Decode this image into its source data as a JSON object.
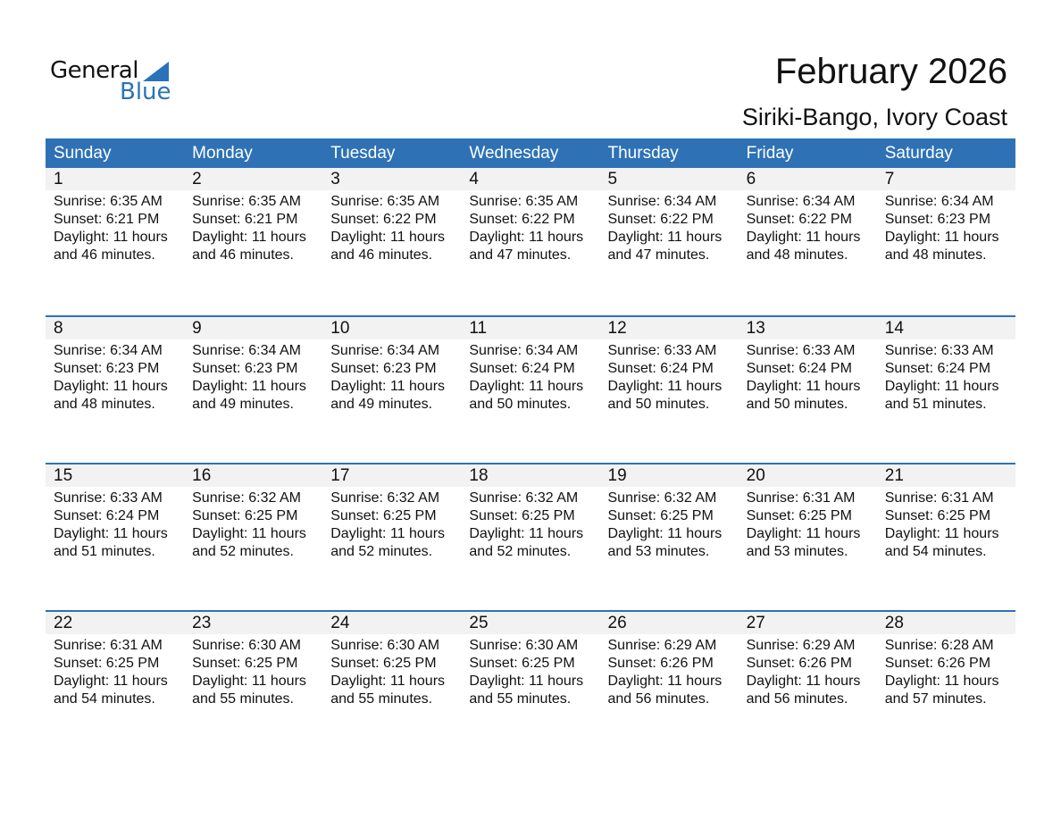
{
  "logo": {
    "text1": "General",
    "text2": "Blue"
  },
  "title": "February 2026",
  "location": "Siriki-Bango, Ivory Coast",
  "colors": {
    "header": "#2e72b5",
    "band": "#f2f2f2",
    "logo_blue": "#2a73b8"
  },
  "weekdays": [
    "Sunday",
    "Monday",
    "Tuesday",
    "Wednesday",
    "Thursday",
    "Friday",
    "Saturday"
  ],
  "weeks": [
    [
      {
        "day": "1",
        "sunrise": "Sunrise: 6:35 AM",
        "sunset": "Sunset: 6:21 PM",
        "daylight": "Daylight: 11 hours",
        "minutes": "and 46 minutes."
      },
      {
        "day": "2",
        "sunrise": "Sunrise: 6:35 AM",
        "sunset": "Sunset: 6:21 PM",
        "daylight": "Daylight: 11 hours",
        "minutes": "and 46 minutes."
      },
      {
        "day": "3",
        "sunrise": "Sunrise: 6:35 AM",
        "sunset": "Sunset: 6:22 PM",
        "daylight": "Daylight: 11 hours",
        "minutes": "and 46 minutes."
      },
      {
        "day": "4",
        "sunrise": "Sunrise: 6:35 AM",
        "sunset": "Sunset: 6:22 PM",
        "daylight": "Daylight: 11 hours",
        "minutes": "and 47 minutes."
      },
      {
        "day": "5",
        "sunrise": "Sunrise: 6:34 AM",
        "sunset": "Sunset: 6:22 PM",
        "daylight": "Daylight: 11 hours",
        "minutes": "and 47 minutes."
      },
      {
        "day": "6",
        "sunrise": "Sunrise: 6:34 AM",
        "sunset": "Sunset: 6:22 PM",
        "daylight": "Daylight: 11 hours",
        "minutes": "and 48 minutes."
      },
      {
        "day": "7",
        "sunrise": "Sunrise: 6:34 AM",
        "sunset": "Sunset: 6:23 PM",
        "daylight": "Daylight: 11 hours",
        "minutes": "and 48 minutes."
      }
    ],
    [
      {
        "day": "8",
        "sunrise": "Sunrise: 6:34 AM",
        "sunset": "Sunset: 6:23 PM",
        "daylight": "Daylight: 11 hours",
        "minutes": "and 48 minutes."
      },
      {
        "day": "9",
        "sunrise": "Sunrise: 6:34 AM",
        "sunset": "Sunset: 6:23 PM",
        "daylight": "Daylight: 11 hours",
        "minutes": "and 49 minutes."
      },
      {
        "day": "10",
        "sunrise": "Sunrise: 6:34 AM",
        "sunset": "Sunset: 6:23 PM",
        "daylight": "Daylight: 11 hours",
        "minutes": "and 49 minutes."
      },
      {
        "day": "11",
        "sunrise": "Sunrise: 6:34 AM",
        "sunset": "Sunset: 6:24 PM",
        "daylight": "Daylight: 11 hours",
        "minutes": "and 50 minutes."
      },
      {
        "day": "12",
        "sunrise": "Sunrise: 6:33 AM",
        "sunset": "Sunset: 6:24 PM",
        "daylight": "Daylight: 11 hours",
        "minutes": "and 50 minutes."
      },
      {
        "day": "13",
        "sunrise": "Sunrise: 6:33 AM",
        "sunset": "Sunset: 6:24 PM",
        "daylight": "Daylight: 11 hours",
        "minutes": "and 50 minutes."
      },
      {
        "day": "14",
        "sunrise": "Sunrise: 6:33 AM",
        "sunset": "Sunset: 6:24 PM",
        "daylight": "Daylight: 11 hours",
        "minutes": "and 51 minutes."
      }
    ],
    [
      {
        "day": "15",
        "sunrise": "Sunrise: 6:33 AM",
        "sunset": "Sunset: 6:24 PM",
        "daylight": "Daylight: 11 hours",
        "minutes": "and 51 minutes."
      },
      {
        "day": "16",
        "sunrise": "Sunrise: 6:32 AM",
        "sunset": "Sunset: 6:25 PM",
        "daylight": "Daylight: 11 hours",
        "minutes": "and 52 minutes."
      },
      {
        "day": "17",
        "sunrise": "Sunrise: 6:32 AM",
        "sunset": "Sunset: 6:25 PM",
        "daylight": "Daylight: 11 hours",
        "minutes": "and 52 minutes."
      },
      {
        "day": "18",
        "sunrise": "Sunrise: 6:32 AM",
        "sunset": "Sunset: 6:25 PM",
        "daylight": "Daylight: 11 hours",
        "minutes": "and 52 minutes."
      },
      {
        "day": "19",
        "sunrise": "Sunrise: 6:32 AM",
        "sunset": "Sunset: 6:25 PM",
        "daylight": "Daylight: 11 hours",
        "minutes": "and 53 minutes."
      },
      {
        "day": "20",
        "sunrise": "Sunrise: 6:31 AM",
        "sunset": "Sunset: 6:25 PM",
        "daylight": "Daylight: 11 hours",
        "minutes": "and 53 minutes."
      },
      {
        "day": "21",
        "sunrise": "Sunrise: 6:31 AM",
        "sunset": "Sunset: 6:25 PM",
        "daylight": "Daylight: 11 hours",
        "minutes": "and 54 minutes."
      }
    ],
    [
      {
        "day": "22",
        "sunrise": "Sunrise: 6:31 AM",
        "sunset": "Sunset: 6:25 PM",
        "daylight": "Daylight: 11 hours",
        "minutes": "and 54 minutes."
      },
      {
        "day": "23",
        "sunrise": "Sunrise: 6:30 AM",
        "sunset": "Sunset: 6:25 PM",
        "daylight": "Daylight: 11 hours",
        "minutes": "and 55 minutes."
      },
      {
        "day": "24",
        "sunrise": "Sunrise: 6:30 AM",
        "sunset": "Sunset: 6:25 PM",
        "daylight": "Daylight: 11 hours",
        "minutes": "and 55 minutes."
      },
      {
        "day": "25",
        "sunrise": "Sunrise: 6:30 AM",
        "sunset": "Sunset: 6:25 PM",
        "daylight": "Daylight: 11 hours",
        "minutes": "and 55 minutes."
      },
      {
        "day": "26",
        "sunrise": "Sunrise: 6:29 AM",
        "sunset": "Sunset: 6:26 PM",
        "daylight": "Daylight: 11 hours",
        "minutes": "and 56 minutes."
      },
      {
        "day": "27",
        "sunrise": "Sunrise: 6:29 AM",
        "sunset": "Sunset: 6:26 PM",
        "daylight": "Daylight: 11 hours",
        "minutes": "and 56 minutes."
      },
      {
        "day": "28",
        "sunrise": "Sunrise: 6:28 AM",
        "sunset": "Sunset: 6:26 PM",
        "daylight": "Daylight: 11 hours",
        "minutes": "and 57 minutes."
      }
    ]
  ]
}
